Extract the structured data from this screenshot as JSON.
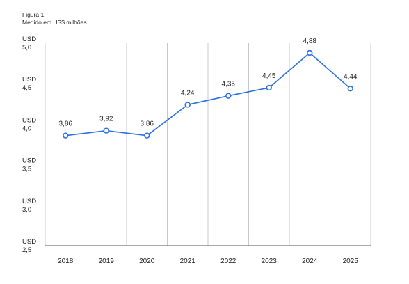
{
  "figure": {
    "label": "Figura 1.",
    "note": "Medido em US$ milhões"
  },
  "chart_data": {
    "type": "line",
    "title": "",
    "xlabel": "",
    "ylabel": "",
    "categories": [
      "2018",
      "2019",
      "2020",
      "2021",
      "2022",
      "2023",
      "2024",
      "2025"
    ],
    "series": [
      {
        "values": [
          3.86,
          3.92,
          3.86,
          4.24,
          4.35,
          4.45,
          4.88,
          4.44
        ],
        "data_labels": [
          "3,86",
          "3,92",
          "3,86",
          "4,24",
          "4,35",
          "4,45",
          "4,88",
          "4,44"
        ],
        "color": "#2a6fe0"
      }
    ],
    "ylim": [
      2.5,
      5.0
    ],
    "yticks": [
      {
        "value": 5.0,
        "currency": "USD",
        "number": "5,0"
      },
      {
        "value": 4.5,
        "currency": "USD",
        "number": "4,5"
      },
      {
        "value": 4.0,
        "currency": "USD",
        "number": "4,0"
      },
      {
        "value": 3.5,
        "currency": "USD",
        "number": "3,5"
      },
      {
        "value": 3.0,
        "currency": "USD",
        "number": "3,0"
      },
      {
        "value": 2.5,
        "currency": "USD",
        "number": "2,5"
      }
    ],
    "grid": "vertical",
    "legend": "none",
    "colors": {
      "line": "#2a6fe0",
      "grid": "#c8c8c8",
      "axis": "#555555"
    }
  }
}
